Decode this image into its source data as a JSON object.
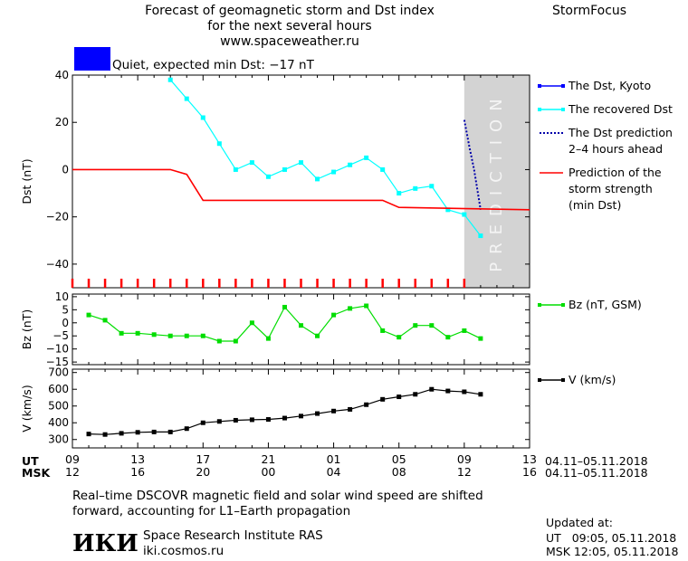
{
  "header": {
    "title_lines": [
      "Forecast of geomagnetic storm and Dst index",
      "for the next several hours",
      "www.spaceweather.ru"
    ],
    "brand": "StormFocus",
    "status_color": "#0000ff",
    "status_text": "Quiet, expected min Dst: −17 nT"
  },
  "chart_data": [
    {
      "type": "line",
      "ylabel": "Dst (nT)",
      "ylim": [
        -50,
        40
      ],
      "yticks": [
        "40",
        "20",
        "0",
        "−20",
        "−40"
      ],
      "ytick_values": [
        40,
        20,
        0,
        -20,
        -40
      ],
      "x_hours": [
        0,
        28
      ],
      "prediction_band_hours": [
        24,
        28
      ],
      "prediction_label": "PREDICTION",
      "legend": [
        {
          "label": "The Dst, Kyoto",
          "color": "#0000ff",
          "style": "line-square"
        },
        {
          "label": "The recovered Dst",
          "color": "#00ffff",
          "style": "line-square"
        },
        {
          "label": "The Dst prediction 2–4 hours ahead",
          "label_lines": [
            "The Dst prediction",
            "2–4 hours ahead"
          ],
          "color": "#0000aa",
          "style": "dotted"
        },
        {
          "label": "Prediction of the storm strength (min Dst)",
          "label_lines": [
            "Prediction of the",
            "storm strength",
            "(min Dst)"
          ],
          "color": "#ff0000",
          "style": "line"
        }
      ],
      "series": [
        {
          "name": "The recovered Dst",
          "color": "#00ffff",
          "x": [
            6,
            7,
            8,
            9,
            10,
            11,
            12,
            13,
            14,
            15,
            16,
            17,
            18,
            19,
            20,
            21,
            22,
            23,
            24,
            25
          ],
          "y": [
            38,
            30,
            22,
            11,
            0,
            3,
            -3,
            0,
            3,
            -4,
            -1,
            2,
            5,
            0,
            -10,
            -8,
            -7,
            -17,
            -19,
            -28
          ]
        },
        {
          "name": "The Dst prediction 2–4 hours ahead",
          "color": "#0000aa",
          "x": [
            24,
            24.3,
            24.6,
            25
          ],
          "y": [
            21,
            10,
            0,
            -17
          ]
        },
        {
          "name": "Prediction of the storm strength (min Dst)",
          "color": "#ff0000",
          "x": [
            0,
            6,
            7,
            8,
            19,
            20,
            28
          ],
          "y": [
            0,
            0,
            -2,
            -13,
            -13,
            -16,
            -17
          ]
        }
      ],
      "storm_marks_hours": [
        0,
        1,
        2,
        3,
        4,
        5,
        6,
        7,
        8,
        9,
        10,
        11,
        12,
        13,
        14,
        15,
        16,
        17,
        18,
        19,
        20,
        21,
        22,
        23,
        24
      ]
    },
    {
      "type": "line",
      "ylabel": "Bz (nT)",
      "ylim": [
        -16,
        11
      ],
      "yticks": [
        "10",
        "5",
        "0",
        "−5",
        "−10",
        "−15"
      ],
      "ytick_values": [
        10,
        5,
        0,
        -5,
        -10,
        -15
      ],
      "legend": [
        {
          "label": "Bz (nT, GSM)",
          "color": "#00dd00",
          "style": "line-square"
        }
      ],
      "series": [
        {
          "name": "Bz (nT, GSM)",
          "color": "#00dd00",
          "x": [
            1,
            2,
            3,
            4,
            5,
            6,
            7,
            8,
            9,
            10,
            11,
            12,
            13,
            14,
            15,
            16,
            17,
            18,
            19,
            20,
            21,
            22,
            23,
            24,
            25
          ],
          "y": [
            3,
            1,
            -4,
            -4,
            -4.5,
            -5,
            -5,
            -5,
            -7,
            -7,
            0,
            -6,
            6,
            -1,
            -5,
            3,
            5.5,
            6.5,
            -3,
            -5.5,
            -1,
            -1,
            -5.5,
            -3,
            -6
          ]
        }
      ]
    },
    {
      "type": "line",
      "ylabel": "V (km/s)",
      "ylim": [
        250,
        720
      ],
      "yticks": [
        "700",
        "600",
        "500",
        "400",
        "300"
      ],
      "ytick_values": [
        700,
        600,
        500,
        400,
        300
      ],
      "legend": [
        {
          "label": "V (km/s)",
          "color": "#000000",
          "style": "line-square"
        }
      ],
      "series": [
        {
          "name": "V (km/s)",
          "color": "#000000",
          "x": [
            1,
            2,
            3,
            4,
            5,
            6,
            7,
            8,
            9,
            10,
            11,
            12,
            13,
            14,
            15,
            16,
            17,
            18,
            19,
            20,
            21,
            22,
            23,
            24,
            25
          ],
          "y": [
            333,
            330,
            337,
            343,
            345,
            345,
            365,
            400,
            408,
            415,
            418,
            420,
            428,
            440,
            455,
            470,
            480,
            508,
            540,
            555,
            570,
            600,
            590,
            585,
            570
          ]
        }
      ]
    }
  ],
  "time_axis": {
    "ut_label": "UT",
    "msk_label": "MSK",
    "ut_ticks": [
      "09",
      "13",
      "17",
      "21",
      "01",
      "05",
      "09",
      "13"
    ],
    "msk_ticks": [
      "12",
      "16",
      "20",
      "00",
      "04",
      "08",
      "12",
      "16"
    ],
    "date_range_ut": "04.11–05.11.2018",
    "date_range_msk": "04.11–05.11.2018"
  },
  "footer": {
    "note_lines": [
      "Real–time DSCOVR magnetic field and solar wind speed are shifted",
      "forward, accounting for L1–Earth propagation"
    ],
    "logo_text": "ИКИ",
    "institute": "Space Research Institute RAS",
    "website": "iki.cosmos.ru",
    "updated_label": "Updated at:",
    "updated_ut": "UT   09:05, 05.11.2018",
    "updated_msk": "MSK 12:05, 05.11.2018"
  }
}
